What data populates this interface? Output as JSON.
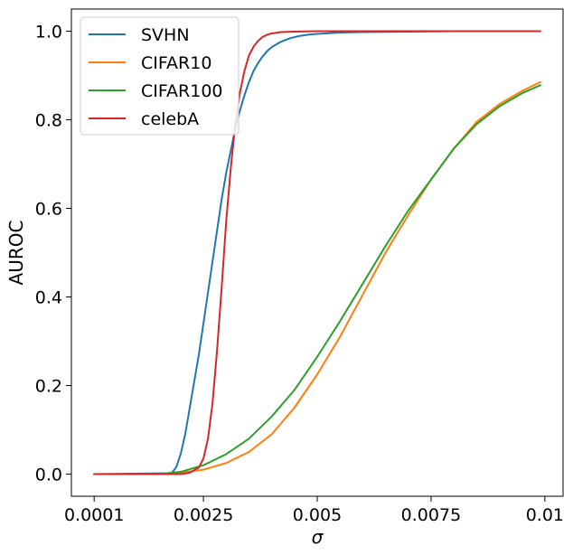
{
  "chart_data": {
    "type": "line",
    "title": "",
    "xlabel": "σ",
    "ylabel": "AUROC",
    "xlim": [
      -0.0004,
      0.0104
    ],
    "ylim": [
      -0.05,
      1.05
    ],
    "xticks": [
      {
        "value": 0.0001,
        "label": "0.0001"
      },
      {
        "value": 0.0025,
        "label": "0.0025"
      },
      {
        "value": 0.005,
        "label": "0.005"
      },
      {
        "value": 0.0075,
        "label": "0.0075"
      },
      {
        "value": 0.01,
        "label": "0.01"
      }
    ],
    "yticks": [
      {
        "value": 0.0,
        "label": "0.0"
      },
      {
        "value": 0.2,
        "label": "0.2"
      },
      {
        "value": 0.4,
        "label": "0.4"
      },
      {
        "value": 0.6,
        "label": "0.6"
      },
      {
        "value": 0.8,
        "label": "0.8"
      },
      {
        "value": 1.0,
        "label": "1.0"
      }
    ],
    "grid": false,
    "legend_position": "top-left",
    "series": [
      {
        "name": "SVHN",
        "color": "#1f77b4",
        "x": [
          0.0001,
          0.0018,
          0.0019,
          0.002,
          0.0021,
          0.0022,
          0.0023,
          0.0024,
          0.0025,
          0.0026,
          0.0027,
          0.0028,
          0.0029,
          0.003,
          0.0031,
          0.0032,
          0.0033,
          0.0034,
          0.0035,
          0.0036,
          0.0037,
          0.0038,
          0.0039,
          0.004,
          0.0042,
          0.0044,
          0.0046,
          0.0048,
          0.005,
          0.0055,
          0.006,
          0.007,
          0.008,
          0.009,
          0.0099
        ],
        "y": [
          0.0,
          0.002,
          0.015,
          0.045,
          0.09,
          0.15,
          0.21,
          0.27,
          0.34,
          0.41,
          0.48,
          0.55,
          0.62,
          0.68,
          0.73,
          0.78,
          0.82,
          0.855,
          0.885,
          0.91,
          0.928,
          0.943,
          0.955,
          0.964,
          0.976,
          0.984,
          0.989,
          0.992,
          0.994,
          0.997,
          0.998,
          0.999,
          1.0,
          1.0,
          1.0
        ]
      },
      {
        "name": "CIFAR10",
        "color": "#ff7f0e",
        "x": [
          0.0001,
          0.0015,
          0.002,
          0.0025,
          0.003,
          0.0035,
          0.004,
          0.0045,
          0.005,
          0.0055,
          0.006,
          0.0065,
          0.007,
          0.0075,
          0.008,
          0.0085,
          0.009,
          0.0095,
          0.0099
        ],
        "y": [
          0.0,
          0.0,
          0.003,
          0.01,
          0.025,
          0.05,
          0.09,
          0.15,
          0.225,
          0.31,
          0.405,
          0.5,
          0.585,
          0.665,
          0.735,
          0.795,
          0.835,
          0.865,
          0.885
        ]
      },
      {
        "name": "CIFAR100",
        "color": "#2ca02c",
        "x": [
          0.0001,
          0.0015,
          0.002,
          0.0025,
          0.003,
          0.0035,
          0.004,
          0.0045,
          0.005,
          0.0055,
          0.006,
          0.0065,
          0.007,
          0.0075,
          0.008,
          0.0085,
          0.009,
          0.0095,
          0.0099
        ],
        "y": [
          0.0,
          0.0,
          0.005,
          0.02,
          0.045,
          0.08,
          0.13,
          0.19,
          0.265,
          0.345,
          0.43,
          0.515,
          0.595,
          0.665,
          0.735,
          0.79,
          0.83,
          0.86,
          0.878
        ]
      },
      {
        "name": "celebA",
        "color": "#d62728",
        "x": [
          0.0001,
          0.002,
          0.0022,
          0.0024,
          0.0025,
          0.0026,
          0.0027,
          0.0028,
          0.0029,
          0.003,
          0.0031,
          0.0032,
          0.0033,
          0.0034,
          0.0035,
          0.0036,
          0.0037,
          0.0038,
          0.0039,
          0.004,
          0.0042,
          0.0045,
          0.005,
          0.006,
          0.008,
          0.0099
        ],
        "y": [
          0.0,
          0.0,
          0.003,
          0.015,
          0.035,
          0.08,
          0.16,
          0.28,
          0.42,
          0.57,
          0.69,
          0.79,
          0.86,
          0.91,
          0.945,
          0.965,
          0.978,
          0.987,
          0.992,
          0.995,
          0.998,
          0.999,
          1.0,
          1.0,
          1.0,
          1.0
        ]
      }
    ]
  }
}
